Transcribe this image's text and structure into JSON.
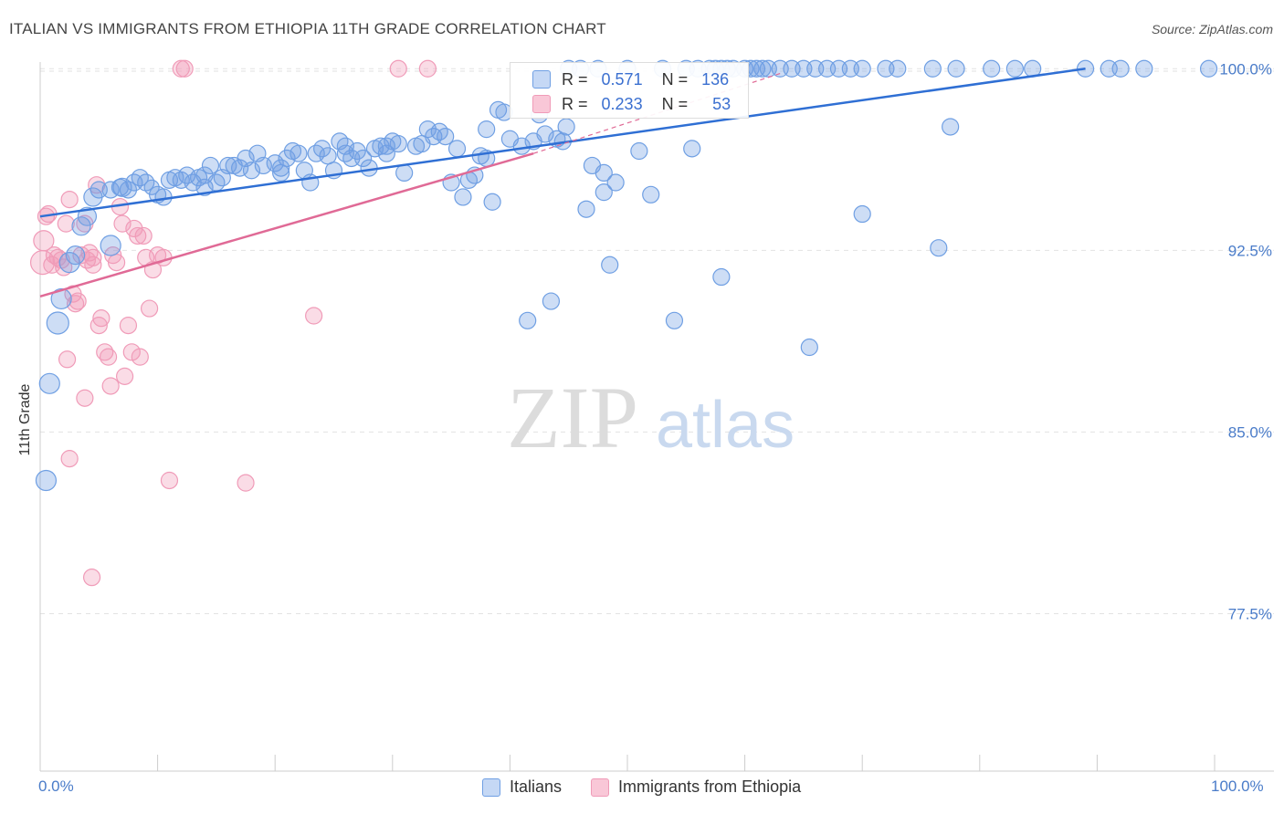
{
  "chart_data": {
    "type": "scatter",
    "title": "ITALIAN VS IMMIGRANTS FROM ETHIOPIA 11TH GRADE CORRELATION CHART",
    "source": "Source: ZipAtlas.com",
    "xlabel": "",
    "ylabel": "11th Grade",
    "xlim": [
      0,
      100
    ],
    "ylim": [
      71.0,
      100.5
    ],
    "x_tick_labels": [
      "0.0%",
      "100.0%"
    ],
    "y_ticks": [
      77.5,
      85.0,
      92.5,
      100.0
    ],
    "y_tick_labels": [
      "77.5%",
      "85.0%",
      "92.5%",
      "100.0%"
    ],
    "grid": true,
    "watermark": {
      "part1": "ZIP",
      "part2": "atlas"
    },
    "colors": {
      "italians": "#6f9fe3",
      "ethiopia": "#f09bb8",
      "italians_line": "#2f6fd4",
      "ethiopia_line": "#e06a96"
    },
    "legend": [
      {
        "name": "Italians",
        "r_label": "R =",
        "r_value": "0.571",
        "n_label": "N =",
        "n_value": "136"
      },
      {
        "name": "Immigrants from Ethiopia",
        "r_label": "R =",
        "r_value": "0.233",
        "n_label": "N =",
        "n_value": "53"
      }
    ],
    "series": [
      {
        "name": "Italians",
        "trend": [
          [
            0,
            93.9
          ],
          [
            89,
            100.0
          ]
        ],
        "points": [
          [
            0.5,
            83.0,
            11
          ],
          [
            0.8,
            87.0,
            11
          ],
          [
            1.5,
            89.5,
            12
          ],
          [
            1.8,
            90.5,
            11
          ],
          [
            2.5,
            92.0,
            11
          ],
          [
            3.0,
            92.3,
            10
          ],
          [
            3.5,
            93.5,
            10
          ],
          [
            4.0,
            93.9,
            10
          ],
          [
            4.5,
            94.7,
            10
          ],
          [
            5.0,
            95.0,
            9
          ],
          [
            6.0,
            95.0,
            9
          ],
          [
            6.8,
            95.1,
            9
          ],
          [
            7.5,
            95.0,
            9
          ],
          [
            8.0,
            95.3,
            9
          ],
          [
            8.5,
            95.5,
            9
          ],
          [
            9.0,
            95.3,
            9
          ],
          [
            9.5,
            95.1,
            8
          ],
          [
            10.0,
            94.8,
            9
          ],
          [
            10.5,
            94.7,
            9
          ],
          [
            11.0,
            95.4,
            9
          ],
          [
            11.5,
            95.5,
            9
          ],
          [
            12.0,
            95.4,
            9
          ],
          [
            12.5,
            95.6,
            9
          ],
          [
            13.0,
            95.3,
            9
          ],
          [
            13.5,
            95.5,
            9
          ],
          [
            14.0,
            95.1,
            9
          ],
          [
            14.5,
            96.0,
            9
          ],
          [
            15.0,
            95.3,
            9
          ],
          [
            15.5,
            95.5,
            9
          ],
          [
            16.0,
            96.0,
            9
          ],
          [
            16.5,
            96.0,
            9
          ],
          [
            17.0,
            95.9,
            9
          ],
          [
            17.5,
            96.3,
            9
          ],
          [
            18.0,
            95.8,
            9
          ],
          [
            18.5,
            96.5,
            9
          ],
          [
            19.0,
            96.0,
            9
          ],
          [
            20.0,
            96.1,
            9
          ],
          [
            20.5,
            95.7,
            9
          ],
          [
            21.0,
            96.3,
            9
          ],
          [
            21.5,
            96.6,
            9
          ],
          [
            22.0,
            96.5,
            9
          ],
          [
            22.5,
            95.8,
            9
          ],
          [
            23.0,
            95.3,
            9
          ],
          [
            23.5,
            96.5,
            9
          ],
          [
            24.0,
            96.7,
            9
          ],
          [
            24.5,
            96.4,
            9
          ],
          [
            25.0,
            95.8,
            9
          ],
          [
            25.5,
            97.0,
            9
          ],
          [
            26.0,
            96.5,
            9
          ],
          [
            26.5,
            96.3,
            9
          ],
          [
            27.0,
            96.6,
            9
          ],
          [
            27.5,
            96.3,
            9
          ],
          [
            28.0,
            95.9,
            9
          ],
          [
            28.5,
            96.7,
            9
          ],
          [
            29.0,
            96.8,
            9
          ],
          [
            29.5,
            96.5,
            9
          ],
          [
            30.0,
            97.0,
            9
          ],
          [
            30.5,
            96.9,
            9
          ],
          [
            31.0,
            95.7,
            9
          ],
          [
            32.0,
            96.8,
            9
          ],
          [
            32.5,
            96.9,
            9
          ],
          [
            33.0,
            97.5,
            9
          ],
          [
            33.5,
            97.2,
            9
          ],
          [
            34.0,
            97.4,
            9
          ],
          [
            34.5,
            97.2,
            9
          ],
          [
            35.0,
            95.3,
            9
          ],
          [
            35.5,
            96.7,
            9
          ],
          [
            36.0,
            94.7,
            9
          ],
          [
            37.0,
            95.6,
            9
          ],
          [
            37.5,
            96.4,
            9
          ],
          [
            38.0,
            97.5,
            9
          ],
          [
            38.5,
            94.5,
            9
          ],
          [
            39.0,
            98.3,
            9
          ],
          [
            39.5,
            98.2,
            9
          ],
          [
            40.0,
            97.1,
            9
          ],
          [
            41.0,
            96.8,
            9
          ],
          [
            41.5,
            89.6,
            9
          ],
          [
            42.0,
            97.0,
            9
          ],
          [
            42.5,
            98.1,
            9
          ],
          [
            43.0,
            97.3,
            9
          ],
          [
            43.5,
            90.4,
            9
          ],
          [
            44.0,
            97.1,
            9
          ],
          [
            44.5,
            97.0,
            9
          ],
          [
            44.8,
            97.6,
            9
          ],
          [
            45.0,
            100.0,
            9
          ],
          [
            46.0,
            100.0,
            9
          ],
          [
            46.5,
            94.2,
            9
          ],
          [
            47.0,
            96.0,
            9
          ],
          [
            47.5,
            100.0,
            9
          ],
          [
            48.0,
            95.7,
            9
          ],
          [
            48.5,
            91.9,
            9
          ],
          [
            49.0,
            95.3,
            9
          ],
          [
            50.0,
            100.0,
            9
          ],
          [
            51.0,
            96.6,
            9
          ],
          [
            52.0,
            94.8,
            9
          ],
          [
            53.0,
            100.0,
            9
          ],
          [
            54.0,
            89.6,
            9
          ],
          [
            55.0,
            100.0,
            9
          ],
          [
            55.5,
            96.7,
            9
          ],
          [
            56.0,
            100.0,
            9
          ],
          [
            57.0,
            100.0,
            9
          ],
          [
            57.5,
            100.0,
            9
          ],
          [
            58.0,
            100.0,
            9
          ],
          [
            58.5,
            100.0,
            9
          ],
          [
            59.0,
            100.0,
            9
          ],
          [
            60.0,
            100.0,
            9
          ],
          [
            60.5,
            100.0,
            9
          ],
          [
            61.0,
            100.0,
            9
          ],
          [
            61.5,
            100.0,
            9
          ],
          [
            62.0,
            100.0,
            9
          ],
          [
            63.0,
            100.0,
            9
          ],
          [
            64.0,
            100.0,
            9
          ],
          [
            65.0,
            100.0,
            9
          ],
          [
            66.0,
            100.0,
            9
          ],
          [
            67.0,
            100.0,
            9
          ],
          [
            68.0,
            100.0,
            9
          ],
          [
            69.0,
            100.0,
            9
          ],
          [
            70.0,
            100.0,
            9
          ],
          [
            72.0,
            100.0,
            9
          ],
          [
            73.0,
            100.0,
            9
          ],
          [
            76.0,
            100.0,
            9
          ],
          [
            78.0,
            100.0,
            9
          ],
          [
            81.0,
            100.0,
            9
          ],
          [
            83.0,
            100.0,
            9
          ],
          [
            84.5,
            100.0,
            9
          ],
          [
            89.0,
            100.0,
            9
          ],
          [
            91.0,
            100.0,
            9
          ],
          [
            92.0,
            100.0,
            9
          ],
          [
            94.0,
            100.0,
            9
          ],
          [
            99.5,
            100.0,
            9
          ],
          [
            58.0,
            91.4,
            9
          ],
          [
            65.5,
            88.5,
            9
          ],
          [
            70.0,
            94.0,
            9
          ],
          [
            76.5,
            92.6,
            9
          ],
          [
            77.5,
            97.6,
            9
          ],
          [
            48.0,
            94.9,
            9
          ],
          [
            38.0,
            96.3,
            9
          ],
          [
            36.5,
            95.4,
            9
          ],
          [
            26.0,
            96.8,
            9
          ],
          [
            20.5,
            95.9,
            9
          ],
          [
            14.0,
            95.6,
            9
          ],
          [
            6.0,
            92.7,
            11
          ],
          [
            7.0,
            95.1,
            10
          ],
          [
            29.5,
            96.8,
            9
          ]
        ]
      },
      {
        "name": "Immigrants from Ethiopia",
        "trend": [
          [
            0,
            90.6
          ],
          [
            42,
            96.5
          ]
        ],
        "trend_dashed": [
          [
            42,
            96.5
          ],
          [
            63,
            99.8
          ]
        ],
        "points": [
          [
            0.2,
            92.0,
            13
          ],
          [
            0.3,
            92.9,
            11
          ],
          [
            0.5,
            93.9,
            9
          ],
          [
            0.7,
            94.0,
            9
          ],
          [
            1.0,
            91.9,
            9
          ],
          [
            1.2,
            92.3,
            9
          ],
          [
            1.5,
            92.2,
            9
          ],
          [
            1.8,
            92.1,
            9
          ],
          [
            2.0,
            91.8,
            9
          ],
          [
            2.2,
            93.6,
            9
          ],
          [
            2.5,
            94.6,
            9
          ],
          [
            2.8,
            90.7,
            9
          ],
          [
            3.0,
            90.3,
            9
          ],
          [
            3.2,
            90.4,
            9
          ],
          [
            3.5,
            92.3,
            9
          ],
          [
            3.8,
            93.6,
            9
          ],
          [
            4.0,
            92.1,
            9
          ],
          [
            4.2,
            92.4,
            9
          ],
          [
            4.5,
            91.9,
            9
          ],
          [
            4.8,
            95.2,
            9
          ],
          [
            5.0,
            89.4,
            9
          ],
          [
            5.2,
            89.7,
            9
          ],
          [
            5.5,
            88.3,
            9
          ],
          [
            5.8,
            88.1,
            9
          ],
          [
            6.0,
            86.9,
            9
          ],
          [
            6.2,
            92.3,
            9
          ],
          [
            6.5,
            92.0,
            9
          ],
          [
            6.8,
            94.3,
            9
          ],
          [
            7.0,
            93.6,
            9
          ],
          [
            7.2,
            87.3,
            9
          ],
          [
            7.5,
            89.4,
            9
          ],
          [
            7.8,
            88.3,
            9
          ],
          [
            8.0,
            93.4,
            9
          ],
          [
            8.3,
            93.1,
            9
          ],
          [
            8.5,
            88.1,
            9
          ],
          [
            8.8,
            93.1,
            9
          ],
          [
            9.0,
            92.2,
            9
          ],
          [
            9.3,
            90.1,
            9
          ],
          [
            9.6,
            91.7,
            9
          ],
          [
            10.0,
            92.3,
            9
          ],
          [
            10.5,
            92.2,
            9
          ],
          [
            11.0,
            83.0,
            9
          ],
          [
            12.0,
            100.0,
            9
          ],
          [
            12.3,
            100.0,
            9
          ],
          [
            17.5,
            82.9,
            9
          ],
          [
            2.3,
            88.0,
            9
          ],
          [
            3.8,
            86.4,
            9
          ],
          [
            2.5,
            83.9,
            9
          ],
          [
            4.4,
            79.0,
            9
          ],
          [
            23.3,
            89.8,
            9
          ],
          [
            30.5,
            100.0,
            9
          ],
          [
            33.0,
            100.0,
            9
          ],
          [
            4.5,
            92.2,
            9
          ]
        ]
      }
    ]
  }
}
